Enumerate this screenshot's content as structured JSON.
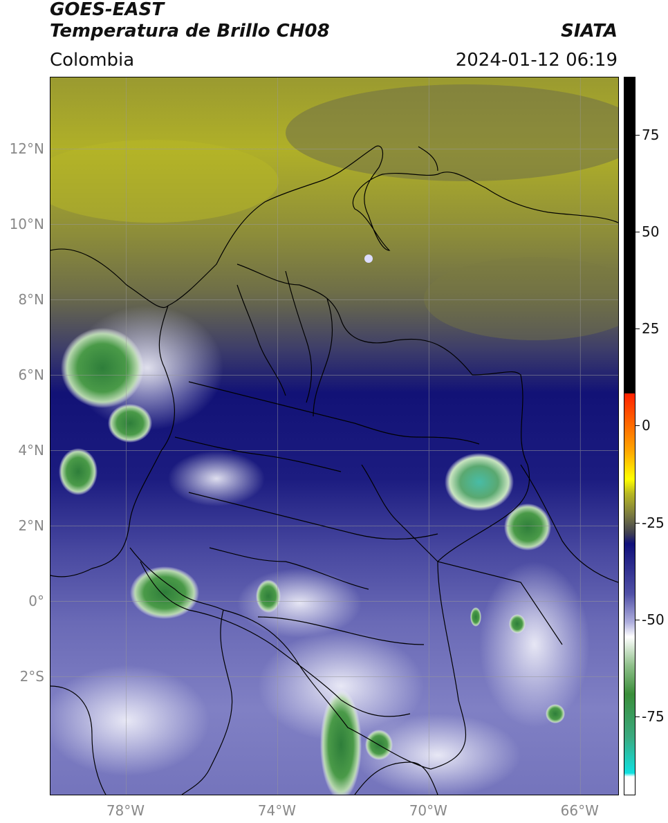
{
  "header": {
    "satellite": "GOES-EAST",
    "product": "Temperatura de Brillo CH08",
    "brand": "SIATA",
    "region": "Colombia",
    "timestamp": "2024-01-12 06:19"
  },
  "map": {
    "lon_range": [
      -80,
      -65
    ],
    "lat_range": [
      -5,
      14
    ],
    "lat_ticks": [
      {
        "value": 12,
        "label": "12°N"
      },
      {
        "value": 10,
        "label": "10°N"
      },
      {
        "value": 8,
        "label": "8°N"
      },
      {
        "value": 6,
        "label": "6°N"
      },
      {
        "value": 4,
        "label": "4°N"
      },
      {
        "value": 2,
        "label": "2°N"
      },
      {
        "value": 0,
        "label": "0°"
      },
      {
        "value": -2,
        "label": "2°S"
      }
    ],
    "lon_ticks": [
      {
        "value": -78,
        "label": "78°W"
      },
      {
        "value": -74,
        "label": "74°W"
      },
      {
        "value": -70,
        "label": "70°W"
      },
      {
        "value": -66,
        "label": "66°W"
      }
    ],
    "colors": {
      "olive_warm": "#b4b424",
      "olive_dark": "#7a7a40",
      "navy": "#10107a",
      "lavender": "#7b7bc0",
      "white": "#f4f4fb",
      "green": "#3e8e3e",
      "teal": "#4cc0a8"
    }
  },
  "colorbar": {
    "min": -95,
    "max": 90,
    "ticks": [
      {
        "value": 75,
        "label": "75"
      },
      {
        "value": 50,
        "label": "50"
      },
      {
        "value": 25,
        "label": "25"
      },
      {
        "value": 0,
        "label": "0"
      },
      {
        "value": -25,
        "label": "-25"
      },
      {
        "value": -50,
        "label": "-50"
      },
      {
        "value": -75,
        "label": "-75"
      }
    ]
  }
}
